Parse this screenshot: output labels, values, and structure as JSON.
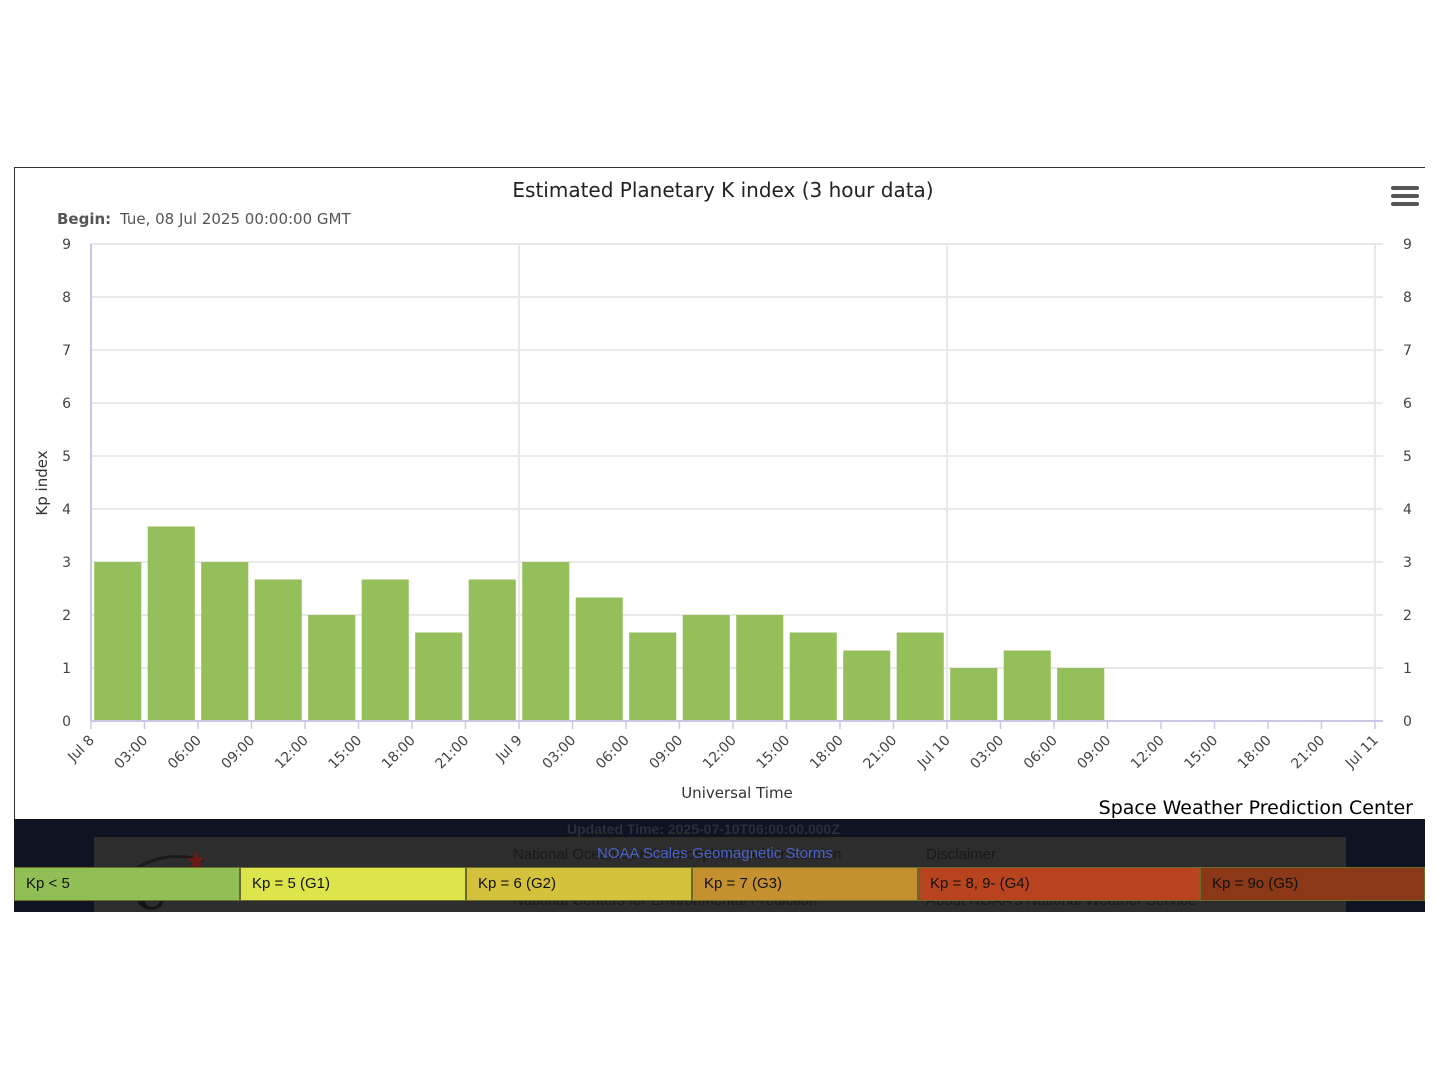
{
  "chart_data": {
    "type": "bar",
    "title": "Estimated Planetary K index (3 hour data)",
    "subtitle_label": "Begin:",
    "subtitle_value": "Tue, 08 Jul 2025 00:00:00 GMT",
    "xlabel": "Universal Time",
    "ylabel": "Kp index",
    "ylim": [
      0,
      9
    ],
    "yticks": [
      "0",
      "1",
      "2",
      "3",
      "4",
      "5",
      "6",
      "7",
      "8",
      "9"
    ],
    "xticks": [
      "Jul 8",
      "03:00",
      "06:00",
      "09:00",
      "12:00",
      "15:00",
      "18:00",
      "21:00",
      "Jul 9",
      "03:00",
      "06:00",
      "09:00",
      "12:00",
      "15:00",
      "18:00",
      "21:00",
      "Jul 10",
      "03:00",
      "06:00",
      "09:00",
      "12:00",
      "15:00",
      "18:00",
      "21:00",
      "Jul 11"
    ],
    "categories": [
      "Jul 8 00:00",
      "Jul 8 03:00",
      "Jul 8 06:00",
      "Jul 8 09:00",
      "Jul 8 12:00",
      "Jul 8 15:00",
      "Jul 8 18:00",
      "Jul 8 21:00",
      "Jul 9 00:00",
      "Jul 9 03:00",
      "Jul 9 06:00",
      "Jul 9 09:00",
      "Jul 9 12:00",
      "Jul 9 15:00",
      "Jul 9 18:00",
      "Jul 9 21:00",
      "Jul 10 00:00",
      "Jul 10 03:00",
      "Jul 10 06:00"
    ],
    "values": [
      3.0,
      3.67,
      3.0,
      2.67,
      2.0,
      2.67,
      1.67,
      2.67,
      3.0,
      2.33,
      1.67,
      2.0,
      2.0,
      1.67,
      1.33,
      1.67,
      1.0,
      1.33,
      1.0
    ],
    "bar_color": "#95bf5a",
    "grid": true,
    "right_axis": true
  },
  "menu": {
    "icon": "hamburger-menu-icon"
  },
  "credit": "Space Weather Prediction Center",
  "footer": {
    "updated": "Updated Time: 2025-07-10T06:00:00.000Z",
    "org_line": "National Oceanic and Atmospheric Administration",
    "centers_line": "National Centers for Environmental Prediction",
    "disclaimer": "Disclaimer",
    "about": "About NOAA's National Weather Service"
  },
  "scales": {
    "title": "NOAA Scales Geomagnetic Storms",
    "items": [
      {
        "label": "Kp < 5",
        "color": "#92bf55"
      },
      {
        "label": "Kp = 5 (G1)",
        "color": "#dde54c"
      },
      {
        "label": "Kp = 6 (G2)",
        "color": "#d4c23c"
      },
      {
        "label": "Kp = 7 (G3)",
        "color": "#c59130"
      },
      {
        "label": "Kp = 8, 9- (G4)",
        "color": "#b8441f"
      },
      {
        "label": "Kp = 9o (G5)",
        "color": "#8b3818"
      }
    ]
  }
}
